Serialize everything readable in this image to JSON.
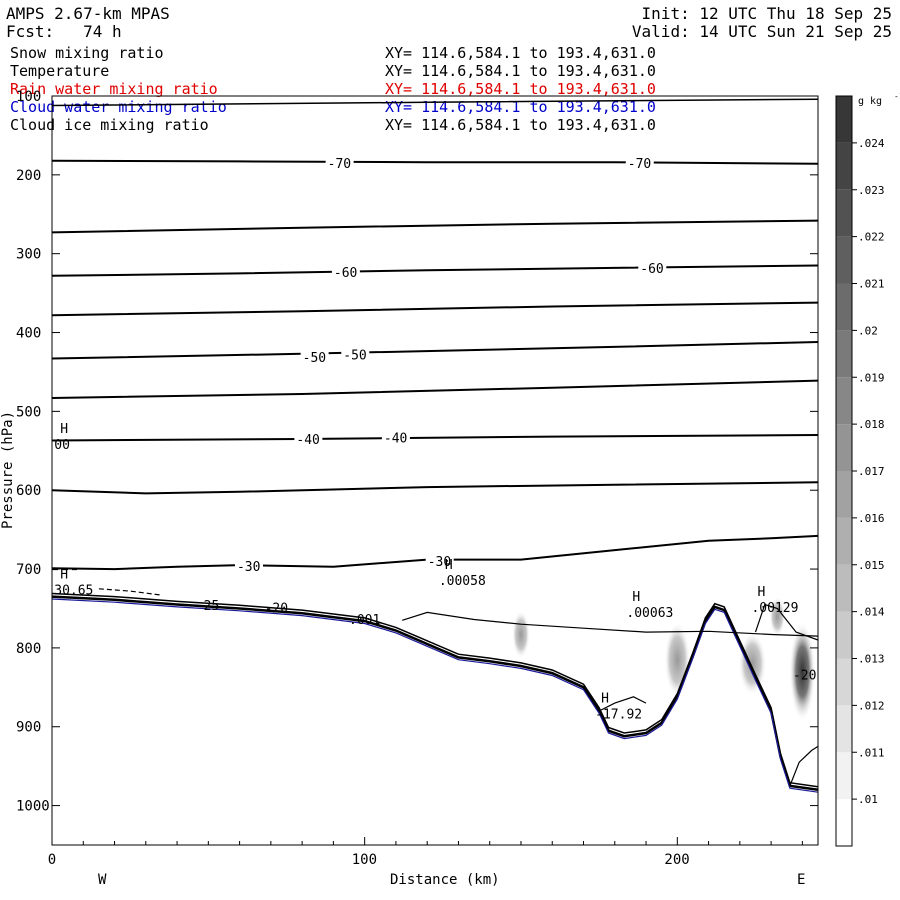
{
  "header": {
    "model": "AMPS 2.67-km MPAS",
    "forecast": "Fcst:   74 h",
    "init": "Init: 12 UTC Thu 18 Sep 25",
    "valid": "Valid: 14 UTC Sun 21 Sep 25"
  },
  "fields": [
    {
      "name": "Snow mixing ratio",
      "xy": "XY= 114.6,584.1 to 193.4,631.0",
      "color": "#000000"
    },
    {
      "name": "Temperature",
      "xy": "XY= 114.6,584.1 to 193.4,631.0",
      "color": "#000000"
    },
    {
      "name": "Rain water mixing ratio",
      "xy": "XY= 114.6,584.1 to 193.4,631.0",
      "color": "#e00000"
    },
    {
      "name": "Cloud water mixing ratio",
      "xy": "XY= 114.6,584.1 to 193.4,631.0",
      "color": "#0000cc"
    },
    {
      "name": "Cloud ice mixing ratio",
      "xy": "XY= 114.6,584.1 to 193.4,631.0",
      "color": "#000000"
    }
  ],
  "chart_data": {
    "type": "contour-cross-section",
    "xlabel": "Distance (km)",
    "ylabel": "Pressure (hPa)",
    "xlim": [
      0,
      245
    ],
    "ylim": [
      1050,
      100
    ],
    "xticks": [
      0,
      100,
      200
    ],
    "yticks": [
      100,
      200,
      300,
      400,
      500,
      600,
      700,
      800,
      900,
      1000
    ],
    "west_label": "W",
    "east_label": "E",
    "colorbar": {
      "unit_label": "g kg",
      "unit_exp": "-1",
      "ticks": [
        ".01",
        ".011",
        ".012",
        ".013",
        ".014",
        ".015",
        ".016",
        ".017",
        ".018",
        ".019",
        ".02",
        ".021",
        ".022",
        ".023",
        ".024"
      ]
    },
    "isotherms": [
      {
        "label": "-70",
        "points": [
          [
            0,
            182
          ],
          [
            60,
            183
          ],
          [
            120,
            184
          ],
          [
            180,
            184
          ],
          [
            245,
            186
          ]
        ],
        "label_at": [
          [
            92,
            185
          ],
          [
            188,
            185
          ]
        ]
      },
      {
        "label": "",
        "points": [
          [
            0,
            273
          ],
          [
            80,
            267
          ],
          [
            160,
            262
          ],
          [
            245,
            258
          ]
        ],
        "label_at": []
      },
      {
        "label": "-60",
        "points": [
          [
            0,
            328
          ],
          [
            60,
            325
          ],
          [
            120,
            321
          ],
          [
            180,
            318
          ],
          [
            245,
            315
          ]
        ],
        "label_at": [
          [
            94,
            323
          ],
          [
            192,
            318
          ]
        ]
      },
      {
        "label": "",
        "points": [
          [
            0,
            378
          ],
          [
            80,
            373
          ],
          [
            160,
            367
          ],
          [
            245,
            362
          ]
        ],
        "label_at": []
      },
      {
        "label": "-50",
        "points": [
          [
            0,
            433
          ],
          [
            80,
            427
          ],
          [
            160,
            420
          ],
          [
            245,
            412
          ]
        ],
        "label_at": [
          [
            84,
            431
          ],
          [
            97,
            428
          ]
        ]
      },
      {
        "label": "",
        "points": [
          [
            0,
            483
          ],
          [
            80,
            478
          ],
          [
            160,
            470
          ],
          [
            245,
            461
          ]
        ],
        "label_at": []
      },
      {
        "label": "-40",
        "points": [
          [
            0,
            537
          ],
          [
            80,
            535
          ],
          [
            160,
            532
          ],
          [
            245,
            530
          ]
        ],
        "label_at": [
          [
            82,
            535
          ],
          [
            110,
            533
          ]
        ]
      },
      {
        "label": "",
        "points": [
          [
            0,
            600
          ],
          [
            30,
            604
          ],
          [
            60,
            602
          ],
          [
            120,
            596
          ],
          [
            180,
            593
          ],
          [
            245,
            590
          ]
        ],
        "label_at": []
      },
      {
        "label": "-30",
        "points": [
          [
            0,
            699
          ],
          [
            20,
            700
          ],
          [
            40,
            697
          ],
          [
            60,
            695
          ],
          [
            90,
            697
          ],
          [
            120,
            688
          ],
          [
            150,
            688
          ],
          [
            180,
            676
          ],
          [
            210,
            664
          ],
          [
            230,
            661
          ],
          [
            245,
            658
          ]
        ],
        "label_at": [
          [
            63,
            696
          ],
          [
            124,
            690
          ]
        ]
      }
    ],
    "high_labels": [
      {
        "x": 2,
        "p": 545,
        "value": "00"
      },
      {
        "x": 2,
        "p": 730,
        "value": "30.65"
      },
      {
        "x": 125,
        "p": 718,
        "value": ".00058"
      },
      {
        "x": 185,
        "p": 758,
        "value": ".00063"
      },
      {
        "x": 225,
        "p": 752,
        "value": ".00129"
      },
      {
        "x": 175,
        "p": 887,
        "value": "-17.92"
      }
    ],
    "other_labels": [
      {
        "x": 68,
        "p": 755,
        "value": "-20"
      },
      {
        "x": 46,
        "p": 752,
        "value": "-25"
      },
      {
        "x": 95,
        "p": 770,
        "value": ".001"
      },
      {
        "x": 237,
        "p": 840,
        "value": "-20"
      }
    ]
  }
}
